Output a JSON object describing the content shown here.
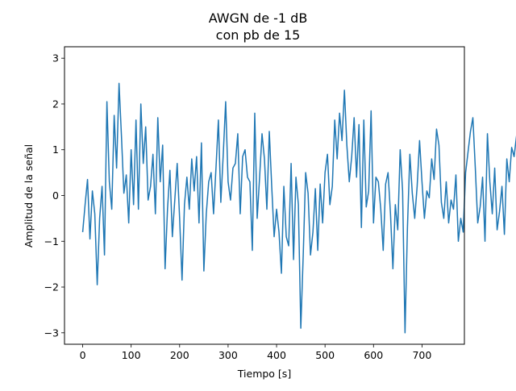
{
  "chart_data": {
    "type": "line",
    "title_lines": [
      "AWGN de -1 dB",
      "con pb de 15"
    ],
    "xlabel": "Tiempo [s]",
    "ylabel": "Amplitud de la señal",
    "xlim": [
      -37.5,
      787.5
    ],
    "ylim": [
      -3.25,
      3.25
    ],
    "x_ticks": [
      0,
      100,
      200,
      300,
      400,
      500,
      600,
      700
    ],
    "x_tick_labels": [
      "0",
      "100",
      "200",
      "300",
      "400",
      "500",
      "600",
      "700"
    ],
    "y_ticks": [
      -3,
      -2,
      -1,
      0,
      1,
      2,
      3
    ],
    "y_tick_labels": [
      "−3",
      "−2",
      "−1",
      "0",
      "1",
      "2",
      "3"
    ],
    "grid": false,
    "series": [
      {
        "color": "#1f77b4",
        "x_step": 5,
        "x_start": 0,
        "y": [
          -0.8,
          -0.2,
          0.35,
          -0.95,
          0.1,
          -0.4,
          -1.95,
          -0.5,
          0.2,
          -1.3,
          2.05,
          0.3,
          -0.3,
          1.75,
          0.6,
          2.45,
          1.3,
          0.05,
          0.45,
          -0.6,
          1.0,
          -0.2,
          1.65,
          -0.3,
          2.0,
          0.7,
          1.5,
          -0.1,
          0.2,
          0.9,
          -0.4,
          1.7,
          0.3,
          1.1,
          -1.6,
          -0.3,
          0.55,
          -0.9,
          -0.1,
          0.7,
          -0.5,
          -1.85,
          -0.2,
          0.4,
          -0.3,
          0.8,
          0.1,
          0.85,
          -0.6,
          1.15,
          -1.65,
          -0.4,
          0.3,
          0.5,
          -0.4,
          0.6,
          1.65,
          -0.15,
          0.9,
          2.05,
          0.3,
          -0.1,
          0.6,
          0.7,
          1.35,
          -0.4,
          0.85,
          1.0,
          0.4,
          0.3,
          -1.2,
          1.8,
          -0.5,
          0.4,
          1.35,
          0.8,
          -0.3,
          1.4,
          0.2,
          -0.9,
          -0.3,
          -0.8,
          -1.7,
          0.2,
          -0.9,
          -1.1,
          0.7,
          -1.4,
          0.4,
          -0.2,
          -2.9,
          -1.3,
          0.5,
          0.05,
          -1.3,
          -0.8,
          0.15,
          -1.2,
          0.25,
          -0.6,
          0.5,
          0.9,
          -0.2,
          0.2,
          1.65,
          0.8,
          1.8,
          1.2,
          2.3,
          1.1,
          0.3,
          0.85,
          1.7,
          0.4,
          1.55,
          -0.7,
          1.65,
          -0.25,
          0.1,
          1.85,
          -0.6,
          0.4,
          0.3,
          -0.3,
          -1.2,
          0.25,
          0.5,
          -0.4,
          -1.6,
          -0.2,
          -0.75,
          1.0,
          0.1,
          -3.0,
          -0.7,
          0.9,
          0.05,
          -0.5,
          0.2,
          1.2,
          0.3,
          -0.5,
          0.1,
          -0.05,
          0.8,
          0.35,
          1.45,
          1.1,
          -0.15,
          -0.5,
          0.3,
          -0.6,
          -0.1,
          -0.3,
          0.45,
          -1.0,
          -0.5,
          -0.8,
          0.5,
          0.95,
          1.4,
          1.7,
          0.6,
          -0.6,
          -0.25,
          0.4,
          -1.0,
          1.35,
          0.3,
          -0.4,
          0.6,
          -0.75,
          -0.35,
          0.2,
          -0.85,
          0.8,
          0.3,
          1.05,
          0.85,
          1.3,
          -0.5,
          2.4,
          0.6,
          1.15,
          -0.7,
          0.3,
          1.5,
          -0.3,
          0.8,
          1.0,
          0.15,
          1.2,
          0.5,
          -0.2,
          -0.4,
          -1.8,
          -0.65,
          -0.3,
          0.15,
          -0.9,
          -0.1,
          -1.35,
          -0.85,
          -2.45,
          -0.1,
          -2.2,
          -0.9,
          -1.15,
          -0.5,
          0.2,
          -1.0,
          0.9,
          -2.1,
          -0.6,
          -2.45,
          -1.2,
          -0.4,
          0.35,
          -0.9,
          -1.4,
          0.2,
          -0.35,
          -1.3,
          -1.05,
          0.15,
          -1.2,
          -0.6,
          -0.15,
          1.35,
          2.35,
          0.5,
          -0.1,
          0.75,
          1.5,
          0.55,
          1.95,
          0.6,
          1.05,
          -0.3,
          0.9,
          1.25,
          0.2,
          2.05,
          0.35,
          1.55,
          0.3,
          -0.1,
          -0.75,
          -0.4,
          -1.6,
          -0.1,
          -0.4,
          -0.8,
          -1.3,
          -0.75,
          -1.8,
          -0.3,
          -0.9,
          0.3,
          -1.6,
          0.45,
          -0.6,
          -1.15,
          0.3,
          -0.5,
          -0.95,
          0.05,
          -0.45,
          0.2,
          1.3,
          0.5,
          1.8,
          0.7,
          1.45,
          -0.2,
          1.0,
          0.85,
          -0.6,
          0.4,
          -0.25,
          0.6,
          1.65,
          0.5,
          2.05,
          1.0,
          1.6,
          2.0,
          0.75,
          0.45,
          -0.2,
          0.6,
          1.2,
          0.5,
          1.45,
          -0.3,
          0.2,
          -0.9,
          -1.6,
          -0.2,
          -0.5,
          -0.7,
          0.15,
          -1.4,
          -0.9,
          -0.65,
          -2.3,
          -0.95,
          -0.6,
          -0.3,
          -1.35,
          -0.75,
          -1.6,
          -1.25,
          0.0,
          -1.0,
          0.1,
          0.9,
          -0.1,
          0.6,
          1.6,
          0.3,
          0.25,
          2.8,
          0.85,
          0.4,
          1.45,
          1.1,
          0.95,
          1.5,
          0.2,
          1.85,
          0.6,
          1.2,
          0.75,
          0.05,
          1.05,
          -0.2,
          -0.4,
          0.8,
          -1.0,
          -0.9,
          -0.3,
          -0.1,
          -2.25,
          -0.6,
          -1.05,
          -0.4,
          -1.0,
          -0.3,
          -1.05,
          -0.6,
          0.3,
          -0.15,
          -0.7,
          0.6,
          0.35,
          0.4,
          1.2,
          0.7,
          0.1,
          1.5,
          0.55,
          0.9,
          0.2,
          2.05,
          0.75,
          0.3,
          1.1,
          0.9,
          0.4,
          1.0,
          -0.1,
          -0.75,
          -1.45,
          0.35,
          -0.1,
          0.5,
          -0.4,
          0.35,
          -0.5,
          -1.35,
          -0.6,
          -1.0,
          -1.4,
          0.3,
          0.5,
          1.55,
          -0.35,
          1.85,
          0.4,
          -0.55,
          0.65,
          1.15,
          -0.4,
          0.9,
          0.15,
          1.3,
          0.2,
          1.15,
          2.0,
          -0.15,
          0.8,
          -0.4,
          0.85,
          -0.6,
          0.3,
          -1.05,
          0.4,
          1.55,
          0.35,
          -0.45,
          1.2,
          0.35,
          0.8,
          1.7,
          0.5,
          1.25,
          1.0,
          -0.1,
          1.3,
          -0.8,
          0.85,
          -0.95,
          1.25,
          -0.8,
          0.45,
          0.0,
          1.3,
          0.4,
          -0.2,
          0.3,
          -0.75,
          0.0,
          -0.9,
          0.85,
          0.55,
          -0.15,
          -0.9,
          0.2,
          1.2,
          0.3,
          -0.5,
          1.1,
          0.1,
          0.75,
          -0.3,
          1.2
        ]
      }
    ]
  }
}
